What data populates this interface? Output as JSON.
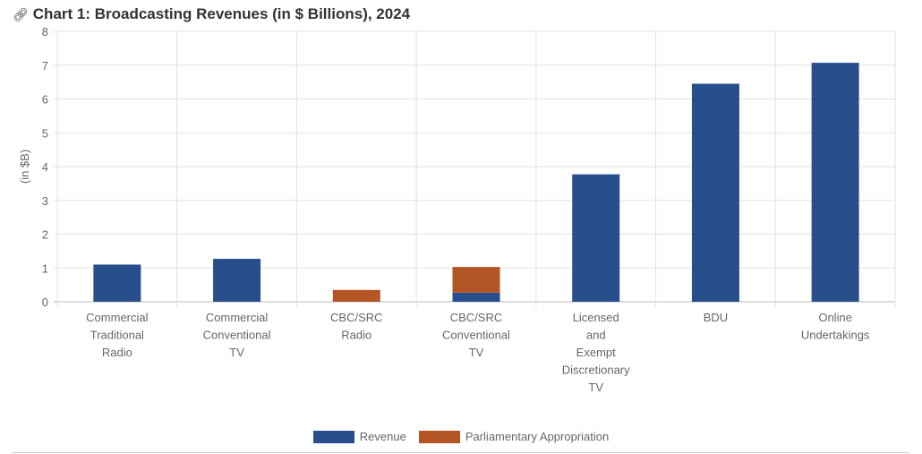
{
  "title": "Chart 1: Broadcasting Revenues (in $ Billions), 2024",
  "title_icon": "link-icon",
  "chart_data": {
    "type": "bar",
    "stacked": true,
    "title": "Chart 1: Broadcasting Revenues (in $ Billions), 2024",
    "xlabel": "",
    "ylabel": "(in $B)",
    "ylim": [
      0,
      8
    ],
    "yticks": [
      0,
      1,
      2,
      3,
      4,
      5,
      6,
      7,
      8
    ],
    "grid": true,
    "legend_position": "bottom",
    "categories": [
      [
        "Commercial",
        "Traditional",
        "Radio"
      ],
      [
        "Commercial",
        "Conventional",
        "TV"
      ],
      [
        "CBC/SRC",
        "Radio"
      ],
      [
        "CBC/SRC",
        "Conventional",
        "TV"
      ],
      [
        "Licensed",
        "and",
        "Exempt",
        "Discretionary",
        "TV"
      ],
      [
        "BDU"
      ],
      [
        "Online",
        "Undertakings"
      ]
    ],
    "series": [
      {
        "name": "Revenue",
        "color": "#284f8b",
        "values": [
          1.1,
          1.27,
          0,
          0.27,
          3.77,
          6.45,
          7.07
        ]
      },
      {
        "name": "Parliamentary Appropriation",
        "color": "#b45525",
        "values": [
          0,
          0,
          0.35,
          0.76,
          0,
          0,
          0
        ]
      }
    ]
  }
}
